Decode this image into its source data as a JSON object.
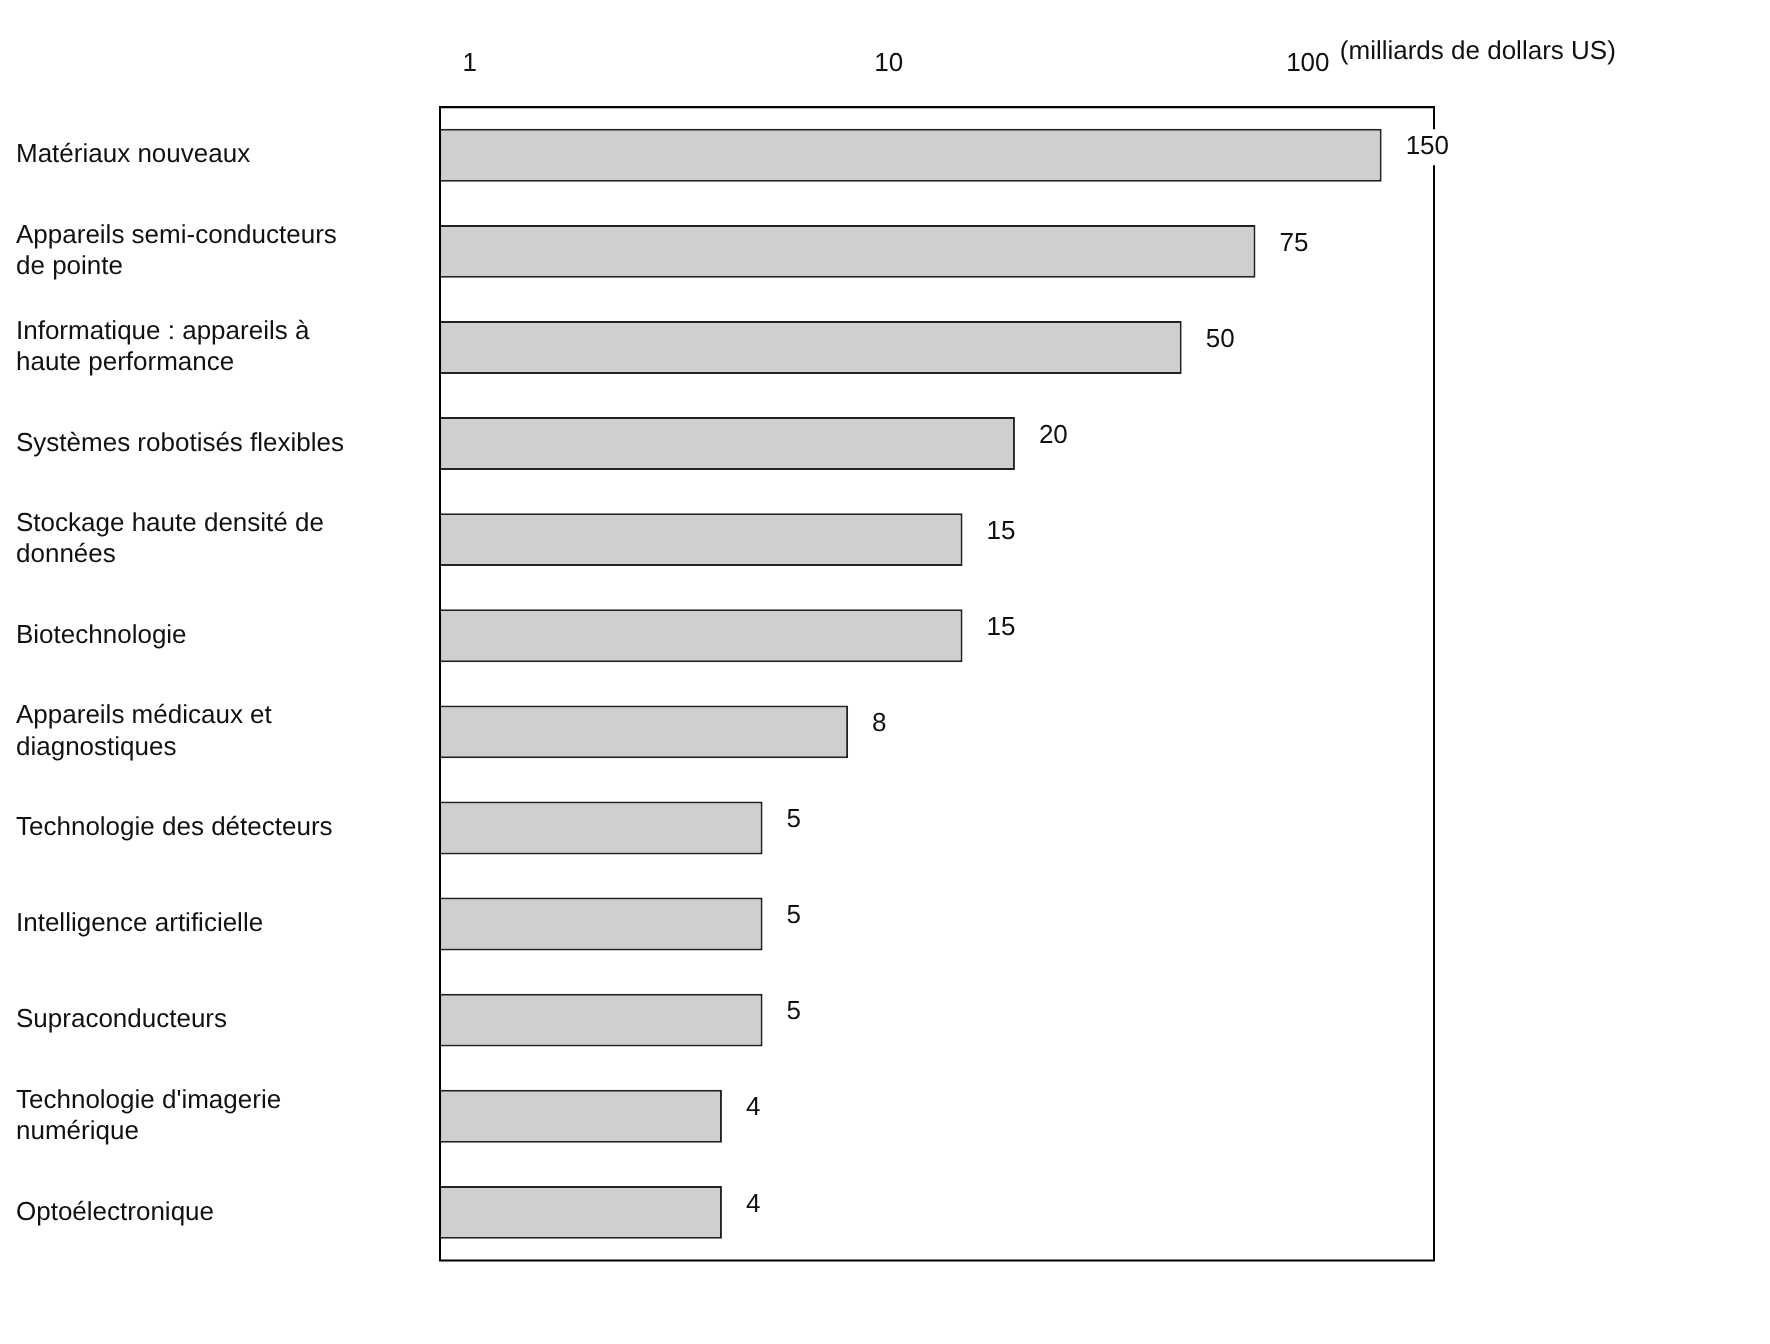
{
  "chart_data": {
    "type": "bar",
    "orientation": "horizontal",
    "log": "x",
    "xlabel": "(milliards de dollars US)",
    "categories": [
      "Matériaux nouveaux",
      "Appareils semi-conducteurs de pointe",
      "Informatique : appareils à haute performance",
      "Systèmes robotisés flexibles",
      "Stockage haute densité de données",
      "Biotechnologie",
      "Appareils médicaux et diagnostiques",
      "Technologie des détecteurs",
      "Intelligence artificielle",
      "Supraconducteurs",
      "Technologie d'imagerie numérique",
      "Optoélectronique"
    ],
    "values": [
      150,
      75,
      50,
      20,
      15,
      15,
      8,
      5,
      5,
      5,
      4,
      4
    ],
    "color": "#cfcfcf",
    "xlim": [
      0.85,
      200
    ],
    "xticks": [
      1,
      10,
      100
    ],
    "grid": false,
    "legend": false,
    "data_labels": true
  }
}
